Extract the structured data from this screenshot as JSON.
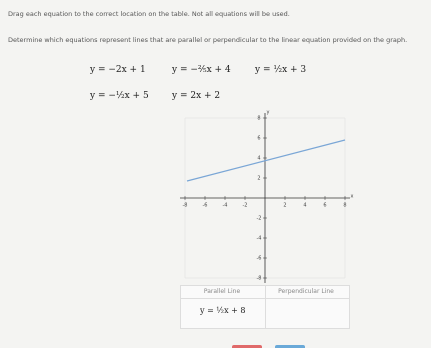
{
  "instructions": [
    "Drag each equation to the correct location on the table. Not all equations will be used.",
    "Determine which equations represent lines that are parallel or perpendicular to the linear equation provided on the graph."
  ],
  "equations": [
    "y = −2x + 1",
    "y = −⅖x + 4",
    "y = ½x + 3",
    "y = −½x + 5",
    "y = 2x + 2"
  ],
  "graph": {
    "x_label": "x",
    "y_label": "y",
    "xticks": [
      "-8",
      "-6",
      "-4",
      "-2",
      "2",
      "4",
      "6",
      "8"
    ],
    "yticks": [
      "8",
      "6",
      "4",
      "2",
      "-2",
      "-4",
      "-6",
      "-8"
    ]
  },
  "table": {
    "headers": [
      "Parallel Line",
      "Perpendicular Line"
    ],
    "parallel_cell": "y = ½x + 8"
  }
}
